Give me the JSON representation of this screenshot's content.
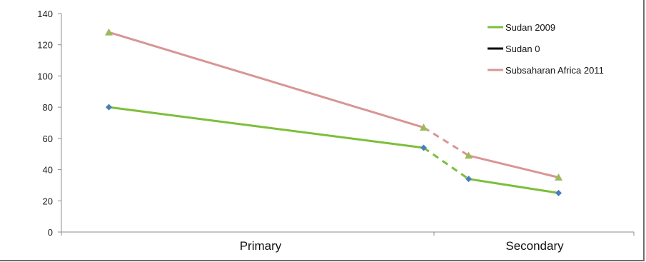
{
  "chart_data": {
    "type": "line",
    "ylim": [
      0,
      140
    ],
    "y_ticks": [
      "0",
      "20",
      "40",
      "60",
      "80",
      "100",
      "120",
      "140"
    ],
    "categories": [
      "Primary",
      "Secondary"
    ],
    "grid": false,
    "legend_position": "top-right",
    "series": [
      {
        "name": "Sudan 2009",
        "color": "#7cbf3a",
        "marker_color": "#4a7ebb",
        "marker": "diamond",
        "segments": [
          {
            "style": "solid",
            "x": [
              0.05,
              0.75
            ],
            "y": [
              80,
              54
            ]
          },
          {
            "style": "dashed",
            "x": [
              0.75,
              0.85
            ],
            "y": [
              54,
              34
            ]
          },
          {
            "style": "solid",
            "x": [
              0.85,
              1.05
            ],
            "y": [
              34,
              25
            ]
          }
        ]
      },
      {
        "name": "Sudan 0",
        "color": "#000000",
        "segments": []
      },
      {
        "name": "Subsaharan Africa 2011",
        "color": "#d99594",
        "marker_color": "#9bbb59",
        "marker": "triangle",
        "segments": [
          {
            "style": "solid",
            "x": [
              0.05,
              0.75
            ],
            "y": [
              128,
              67
            ]
          },
          {
            "style": "dashed",
            "x": [
              0.75,
              0.85
            ],
            "y": [
              67,
              49
            ]
          },
          {
            "style": "solid",
            "x": [
              0.85,
              1.05
            ],
            "y": [
              49,
              35
            ]
          }
        ]
      }
    ]
  }
}
